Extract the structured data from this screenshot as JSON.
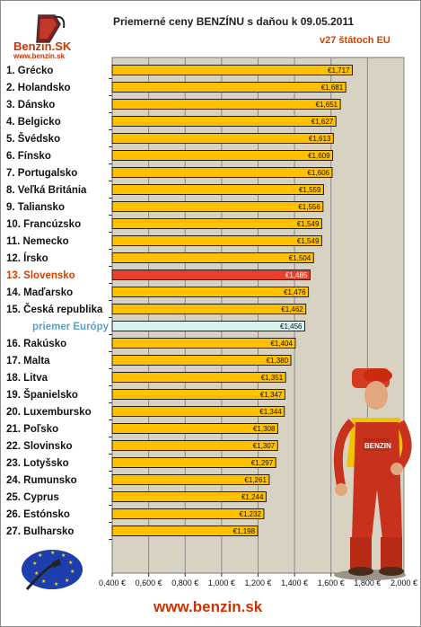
{
  "header": {
    "logo_text": "Benzin.SK",
    "logo_url": "www.benzin.sk",
    "title": "Priemerné ceny BENZÍNU s daňou k 09.05.2011",
    "subtitle": "v27 štátoch EU"
  },
  "footer": {
    "url": "www.benzin.sk"
  },
  "colors": {
    "bar": "#ffc000",
    "highlight": "#e8402a",
    "average": "#d8f3ef",
    "plot_bg": "#d8d2c2",
    "highlight_text": "#cc4400",
    "average_text": "#5aa0cc"
  },
  "icons": [
    "benzin-logo-icon",
    "pump-attendant-figure",
    "eu-flag-pump-icon"
  ],
  "chart_data": {
    "type": "bar",
    "orientation": "horizontal",
    "title": "Priemerné ceny BENZÍNU s daňou k 09.05.2011",
    "subtitle": "v27 štátoch EU",
    "categories": [
      "1. Grécko",
      "2. Holandsko",
      "3. Dánsko",
      "4. Belgicko",
      "5. Švédsko",
      "6. Fínsko",
      "7. Portugalsko",
      "8. Veľká Británia",
      "9. Taliansko",
      "10. Francúzsko",
      "11. Nemecko",
      "12. Írsko",
      "13. Slovensko",
      "14. Maďarsko",
      "15. Česká republika",
      "priemer Európy",
      "16. Rakúsko",
      "17. Malta",
      "18. Litva",
      "19. Španielsko",
      "20. Luxembursko",
      "21. Poľsko",
      "22. Slovinsko",
      "23. Lotyšsko",
      "24. Rumunsko",
      "25. Cyprus",
      "26. Estónsko",
      "27. Bulharsko"
    ],
    "values": [
      1.717,
      1.681,
      1.651,
      1.627,
      1.613,
      1.609,
      1.606,
      1.559,
      1.556,
      1.549,
      1.549,
      1.504,
      1.485,
      1.476,
      1.462,
      1.456,
      1.404,
      1.38,
      1.351,
      1.347,
      1.344,
      1.308,
      1.307,
      1.297,
      1.261,
      1.244,
      1.232,
      1.198
    ],
    "value_labels": [
      "€1,717",
      "€1,681",
      "€1,651",
      "€1,627",
      "€1,613",
      "€1,609",
      "€1,606",
      "€1,559",
      "€1,556",
      "€1,549",
      "€1,549",
      "€1,504",
      "€1,485",
      "€1,476",
      "€1,462",
      "€1,456",
      "€1,404",
      "€1,380",
      "€1,351",
      "€1,347",
      "€1,344",
      "€1,308",
      "€1,307",
      "€1,297",
      "€1,261",
      "€1,244",
      "€1,232",
      "€1,198"
    ],
    "highlight": "13. Slovensko",
    "average": "priemer Európy",
    "xlim": [
      0.4,
      2.0
    ],
    "xticks": [
      "0,400 €",
      "0,600 €",
      "0,800 €",
      "1,000 €",
      "1,200 €",
      "1,400 €",
      "1,600 €",
      "1,800 €",
      "2,000 €"
    ],
    "grid": true
  }
}
